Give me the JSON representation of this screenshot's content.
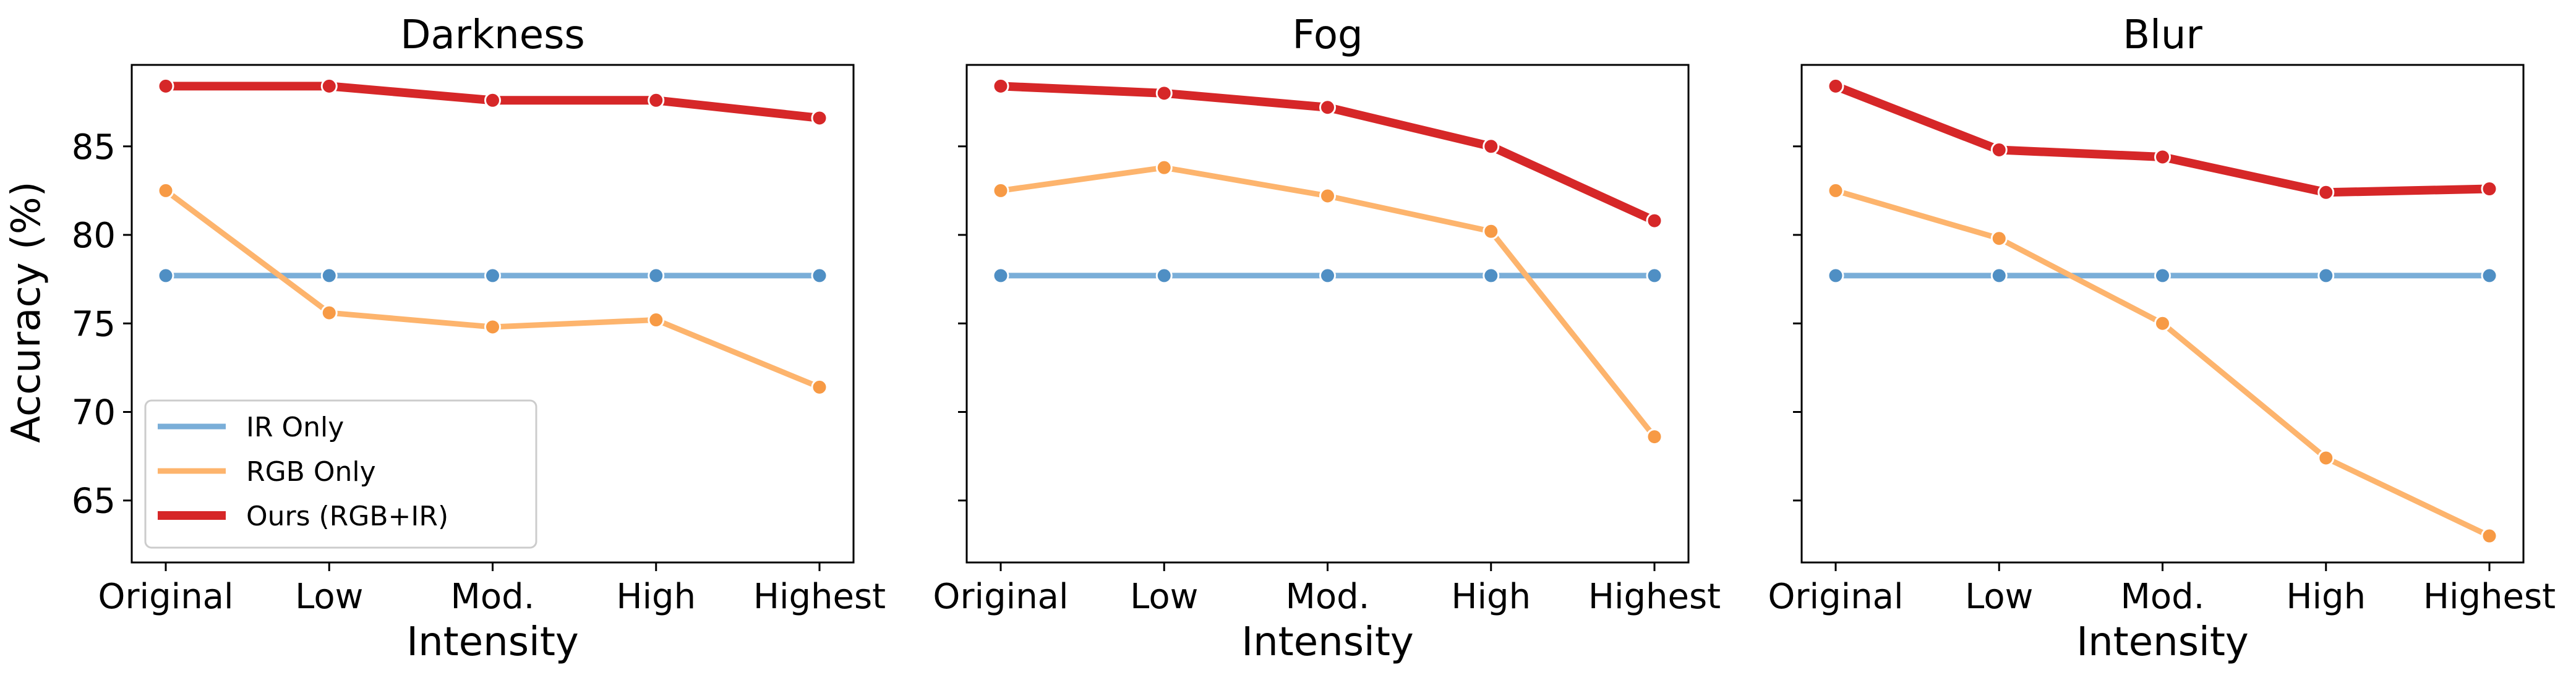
{
  "chart_data": {
    "type": "line",
    "ylabel": "Accuracy (%)",
    "xlabel": "Intensity",
    "ylim": [
      61.5,
      89.6
    ],
    "yticks": [
      65,
      70,
      75,
      80,
      85
    ],
    "sharey": true,
    "categories": [
      "Original",
      "Low",
      "Mod.",
      "High",
      "Highest"
    ],
    "legend": {
      "placement": "lower-left",
      "panel": 0
    },
    "series_style": [
      {
        "name": "IR Only",
        "color": "#7aaed8",
        "marker_color": "#4f8fc4"
      },
      {
        "name": "RGB Only",
        "color": "#fdb46d",
        "marker_color": "#f79a45"
      },
      {
        "name": "Ours (RGB+IR)",
        "color": "#d62728",
        "marker_color": "#d62728"
      }
    ],
    "panels": [
      {
        "title": "Darkness",
        "series": [
          {
            "name": "IR Only",
            "values": [
              77.7,
              77.7,
              77.7,
              77.7,
              77.7
            ]
          },
          {
            "name": "RGB Only",
            "values": [
              82.5,
              75.6,
              74.8,
              75.2,
              71.4
            ]
          },
          {
            "name": "Ours (RGB+IR)",
            "values": [
              88.4,
              88.4,
              87.6,
              87.6,
              86.6
            ]
          }
        ]
      },
      {
        "title": "Fog",
        "series": [
          {
            "name": "IR Only",
            "values": [
              77.7,
              77.7,
              77.7,
              77.7,
              77.7
            ]
          },
          {
            "name": "RGB Only",
            "values": [
              82.5,
              83.8,
              82.2,
              80.2,
              68.6
            ]
          },
          {
            "name": "Ours (RGB+IR)",
            "values": [
              88.4,
              88.0,
              87.2,
              85.0,
              80.8
            ]
          }
        ]
      },
      {
        "title": "Blur",
        "series": [
          {
            "name": "IR Only",
            "values": [
              77.7,
              77.7,
              77.7,
              77.7,
              77.7
            ]
          },
          {
            "name": "RGB Only",
            "values": [
              82.5,
              79.8,
              75.0,
              67.4,
              63.0
            ]
          },
          {
            "name": "Ours (RGB+IR)",
            "values": [
              88.4,
              84.8,
              84.4,
              82.4,
              82.6
            ]
          }
        ]
      }
    ]
  }
}
